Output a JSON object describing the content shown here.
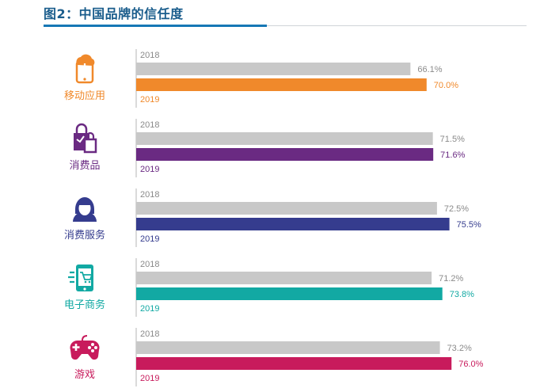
{
  "title": "图2：中国品牌的信任度",
  "chart_data": {
    "type": "bar",
    "orientation": "horizontal",
    "title": "图2：中国品牌的信任度",
    "categories": [
      "移动应用",
      "消费品",
      "消费服务",
      "电子商务",
      "游戏"
    ],
    "series": [
      {
        "name": "2018",
        "values": [
          66.1,
          71.5,
          72.5,
          71.2,
          73.2
        ],
        "labels": [
          "66.1%",
          "71.5%",
          "72.5%",
          "71.2%",
          "73.2%"
        ],
        "color": "#c8c8c8"
      },
      {
        "name": "2019",
        "values": [
          70.0,
          71.6,
          75.5,
          73.8,
          76.0
        ],
        "labels": [
          "70.0%",
          "71.6%",
          "75.5%",
          "73.8%",
          "76.0%"
        ]
      }
    ],
    "category_colors": [
      "#f0892b",
      "#6a2a82",
      "#353c8e",
      "#12a9a3",
      "#c81b5c"
    ],
    "category_icons": [
      "mobile-app-icon",
      "shopping-bags-icon",
      "headset-agent-icon",
      "mobile-cart-icon",
      "gamepad-icon"
    ],
    "xlim": [
      0,
      100
    ],
    "grid": false,
    "legend": "none"
  }
}
